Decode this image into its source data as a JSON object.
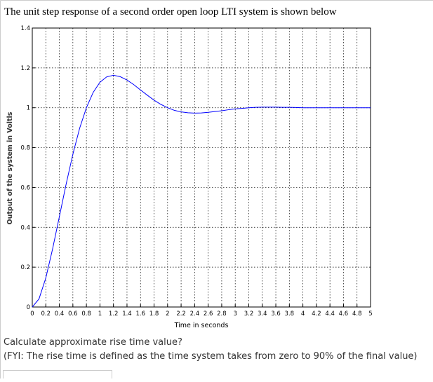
{
  "title": "The unit step response of a second order open loop LTI system is shown below",
  "chart_data": {
    "type": "line",
    "xlabel": "Time in seconds",
    "ylabel": "Output of the system in Voltls",
    "x": [
      0,
      0.1,
      0.2,
      0.3,
      0.4,
      0.5,
      0.6,
      0.7,
      0.8,
      0.9,
      1,
      1.1,
      1.2,
      1.3,
      1.4,
      1.5,
      1.6,
      1.7,
      1.8,
      1.9,
      2,
      2.1,
      2.2,
      2.3,
      2.4,
      2.5,
      2.6,
      2.7,
      2.8,
      2.9,
      3,
      3.1,
      3.2,
      3.3,
      3.4,
      3.5,
      3.6,
      3.7,
      3.8,
      3.9,
      4,
      4.5,
      5
    ],
    "series": [
      {
        "color": "#0000ff",
        "values": [
          0,
          0.041,
          0.146,
          0.291,
          0.453,
          0.616,
          0.767,
          0.897,
          1.0,
          1.077,
          1.128,
          1.155,
          1.163,
          1.156,
          1.139,
          1.116,
          1.089,
          1.063,
          1.038,
          1.017,
          1.0,
          0.987,
          0.979,
          0.975,
          0.973,
          0.974,
          0.977,
          0.981,
          0.985,
          0.99,
          0.994,
          0.997,
          1.0,
          1.002,
          1.003,
          1.003,
          1.003,
          1.002,
          1.002,
          1.001,
          1.0,
          1.0,
          1.0
        ]
      }
    ],
    "xlim": [
      0,
      5
    ],
    "ylim": [
      0,
      1.4
    ],
    "xticks": [
      0,
      0.2,
      0.4,
      0.6,
      0.8,
      1,
      1.2,
      1.4,
      1.6,
      1.8,
      2,
      2.2,
      2.4,
      2.6,
      2.8,
      3,
      3.2,
      3.4,
      3.6,
      3.8,
      4,
      4.2,
      4.4,
      4.6,
      4.8,
      5
    ],
    "yticks": [
      0,
      0.2,
      0.4,
      0.6,
      0.8,
      1,
      1.2,
      1.4
    ],
    "grid": true
  },
  "question": "Calculate approximate rise time value?",
  "note": "(FYI: The rise time is defined as the time system takes from zero to 90% of the final value)"
}
